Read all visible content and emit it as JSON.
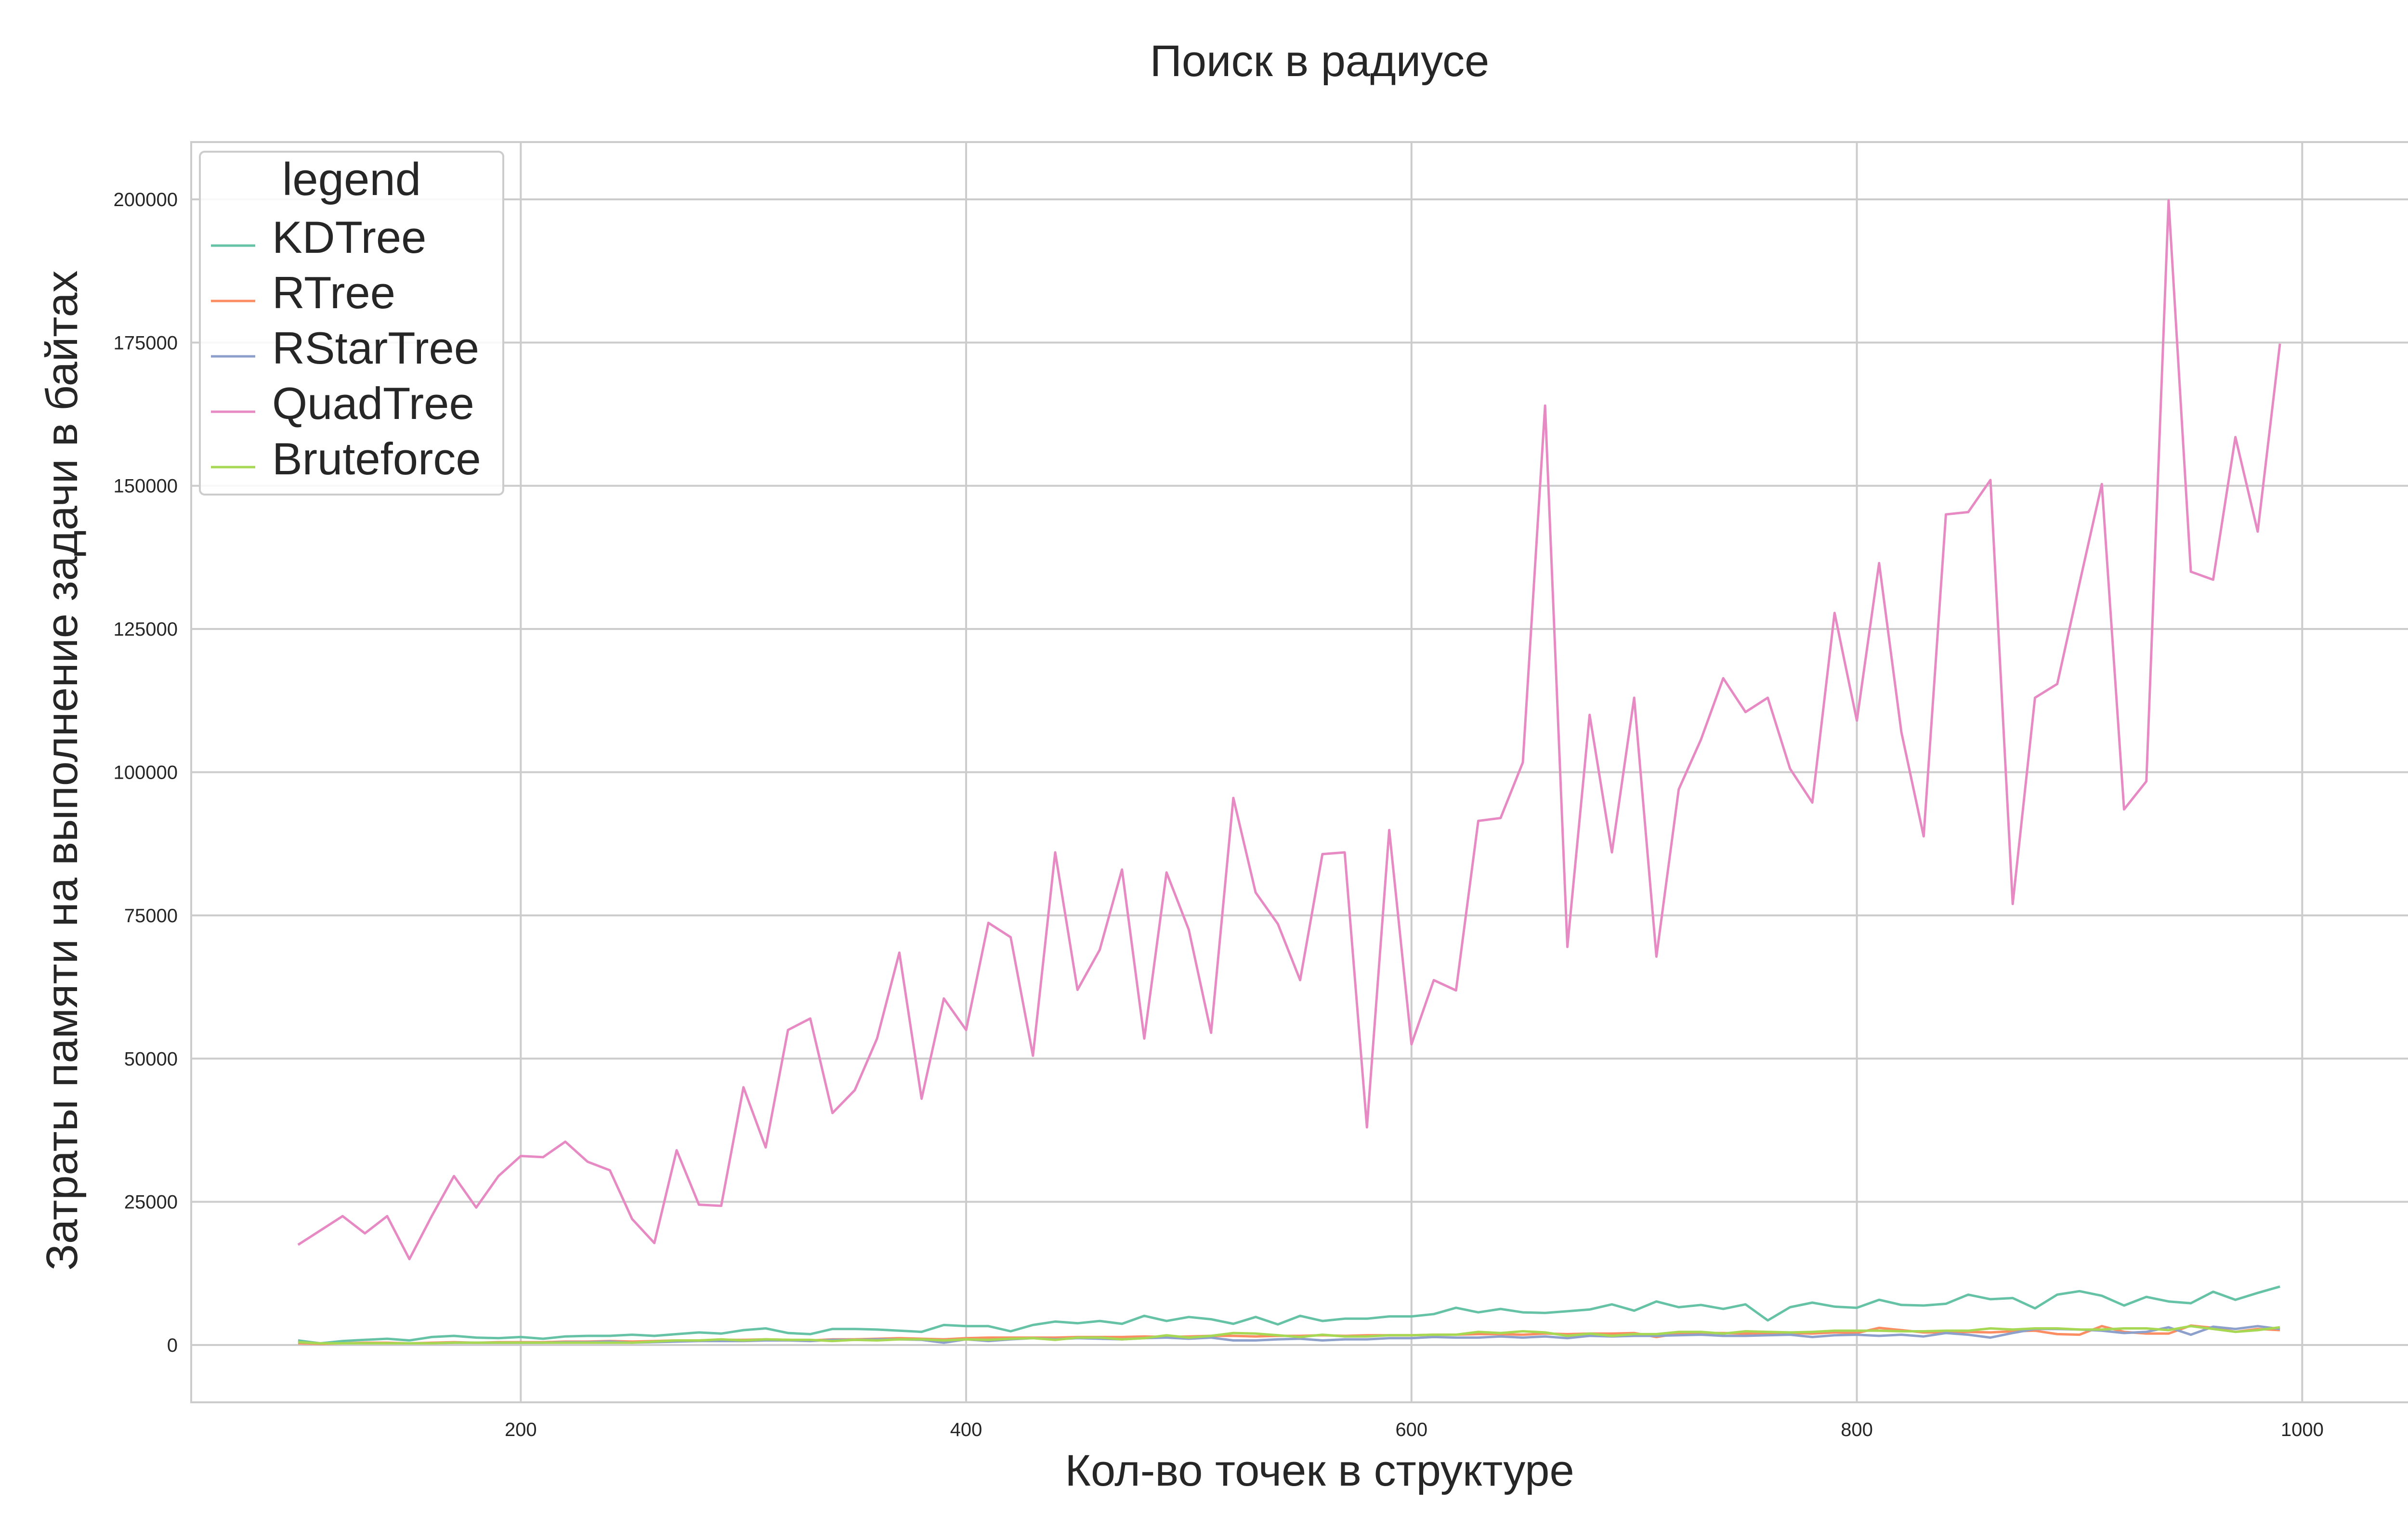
{
  "chart_data": {
    "type": "line",
    "title": "Поиск в радиусе",
    "xlabel": "Кол-во точек в структуре",
    "ylabel": "Затраты памяти на выполнение задачи в байтах",
    "xlim": [
      52,
      1062
    ],
    "ylim": [
      -10000,
      210000
    ],
    "xticks": [
      200,
      400,
      600,
      800,
      1000
    ],
    "yticks": [
      0,
      25000,
      50000,
      75000,
      100000,
      125000,
      150000,
      175000,
      200000
    ],
    "grid": true,
    "legend": {
      "title": "legend",
      "position": "top-left"
    },
    "x": [
      100,
      110,
      120,
      130,
      140,
      150,
      160,
      170,
      180,
      190,
      200,
      210,
      220,
      230,
      240,
      250,
      260,
      270,
      280,
      290,
      300,
      310,
      320,
      330,
      340,
      350,
      360,
      370,
      380,
      390,
      400,
      410,
      420,
      430,
      440,
      450,
      460,
      470,
      480,
      490,
      500,
      510,
      520,
      530,
      540,
      550,
      560,
      570,
      580,
      590,
      600,
      610,
      620,
      630,
      640,
      650,
      660,
      670,
      680,
      690,
      700,
      710,
      720,
      730,
      740,
      750,
      760,
      770,
      780,
      790,
      800,
      810,
      820,
      830,
      840,
      850,
      860,
      870,
      880,
      890,
      900,
      910,
      920,
      930,
      940,
      950,
      960,
      970,
      980,
      990
    ],
    "series": [
      {
        "name": "KDTree",
        "color": "#66c2a5",
        "values": [
          800,
          300,
          700,
          900,
          1100,
          800,
          1400,
          1600,
          1300,
          1200,
          1400,
          1100,
          1500,
          1600,
          1600,
          1800,
          1600,
          1900,
          2200,
          2000,
          2600,
          2900,
          2100,
          1900,
          2800,
          2800,
          2700,
          2500,
          2300,
          3500,
          3300,
          3300,
          2400,
          3500,
          4100,
          3800,
          4200,
          3700,
          5100,
          4200,
          4900,
          4500,
          3700,
          4900,
          3600,
          5100,
          4200,
          4600,
          4600,
          5000,
          5000,
          5400,
          6500,
          5700,
          6300,
          5700,
          5600,
          5900,
          6200,
          7100,
          6000,
          7600,
          6600,
          7000,
          6300,
          7100,
          4300,
          6600,
          7400,
          6700,
          6500,
          7900,
          7000,
          6900,
          7200,
          8800,
          8000,
          8200,
          6400,
          8800,
          9400,
          8600,
          6900,
          8400,
          7600,
          7300,
          9300,
          7900,
          9100,
          10200
        ]
      },
      {
        "name": "RTree",
        "color": "#fc8d62",
        "values": [
          300,
          200,
          300,
          400,
          400,
          300,
          400,
          500,
          400,
          500,
          500,
          500,
          600,
          600,
          700,
          600,
          700,
          800,
          800,
          900,
          900,
          1000,
          900,
          800,
          1000,
          1000,
          1100,
          1200,
          1100,
          1000,
          1200,
          1300,
          1300,
          1300,
          1300,
          1400,
          1400,
          1400,
          1500,
          1400,
          1500,
          1600,
          1600,
          1500,
          1600,
          1600,
          1700,
          1600,
          1700,
          1700,
          1700,
          1800,
          1800,
          1900,
          1900,
          1800,
          2000,
          1900,
          2000,
          2000,
          2100,
          1400,
          2000,
          2100,
          2100,
          2000,
          2100,
          2100,
          2000,
          2200,
          2100,
          3000,
          2600,
          2200,
          2200,
          2300,
          2200,
          2400,
          2500,
          1900,
          1800,
          3300,
          2300,
          2000,
          2000,
          3400,
          3000,
          2300,
          2800,
          2600
        ]
      },
      {
        "name": "RStarTree",
        "color": "#8da0cb",
        "values": [
          500,
          300,
          300,
          300,
          300,
          300,
          300,
          400,
          400,
          400,
          400,
          400,
          500,
          500,
          600,
          400,
          500,
          600,
          700,
          700,
          700,
          800,
          800,
          700,
          900,
          900,
          1000,
          1000,
          900,
          400,
          1000,
          700,
          1000,
          1200,
          1000,
          1200,
          1100,
          1000,
          1200,
          1300,
          1100,
          1300,
          800,
          800,
          1000,
          1100,
          800,
          1000,
          1000,
          1200,
          1200,
          1400,
          1300,
          1300,
          1500,
          1300,
          1500,
          1200,
          1600,
          1500,
          1600,
          1600,
          1700,
          1800,
          1600,
          1600,
          1700,
          1800,
          1400,
          1700,
          1800,
          1600,
          1800,
          1500,
          2100,
          1800,
          1300,
          2100,
          2800,
          2800,
          2700,
          2500,
          2100,
          2300,
          3100,
          1800,
          3200,
          2800,
          3300,
          2800
        ]
      },
      {
        "name": "QuadTree",
        "color": "#e78ac3",
        "values": [
          17500,
          20000,
          22500,
          19500,
          22500,
          15000,
          22500,
          29500,
          24000,
          29500,
          33000,
          32800,
          35500,
          32000,
          30500,
          22000,
          17800,
          34000,
          24500,
          24300,
          45000,
          34500,
          55000,
          57000,
          40500,
          44500,
          53500,
          68500,
          43000,
          60500,
          55000,
          73700,
          71200,
          50500,
          86000,
          62000,
          69000,
          83000,
          53500,
          82500,
          72500,
          54500,
          95500,
          79000,
          73500,
          63700,
          85700,
          86000,
          38000,
          89900,
          52500,
          63700,
          61900,
          91500,
          92000,
          101700,
          164000,
          69500,
          110000,
          86000,
          113000,
          67800,
          97000,
          105700,
          116400,
          110500,
          113000,
          100600,
          94700,
          127800,
          109000,
          136500,
          107000,
          88800,
          145000,
          145400,
          151000,
          77000,
          113000,
          115400,
          133000,
          150300,
          93500,
          98400,
          199800,
          135000,
          133600,
          158500,
          142000,
          174800
        ]
      },
      {
        "name": "Bruteforce",
        "color": "#a6d854",
        "values": [
          500,
          300,
          300,
          300,
          300,
          300,
          300,
          400,
          400,
          400,
          400,
          400,
          400,
          400,
          400,
          400,
          600,
          800,
          800,
          1000,
          800,
          1000,
          900,
          900,
          700,
          900,
          800,
          1000,
          1000,
          800,
          1000,
          900,
          1100,
          1200,
          900,
          1300,
          1300,
          1000,
          1200,
          1700,
          1300,
          1600,
          2100,
          2000,
          1700,
          1400,
          1800,
          1500,
          1500,
          1700,
          1700,
          1800,
          1800,
          2300,
          2100,
          2400,
          2200,
          1600,
          2000,
          1600,
          1900,
          1900,
          2300,
          2300,
          2000,
          2400,
          2300,
          2200,
          2300,
          2500,
          2500,
          2500,
          2400,
          2400,
          2500,
          2500,
          2900,
          2700,
          2900,
          2900,
          2700,
          2700,
          2900,
          2900,
          2600,
          3300,
          2800,
          2300,
          2600,
          3100
        ]
      }
    ]
  }
}
